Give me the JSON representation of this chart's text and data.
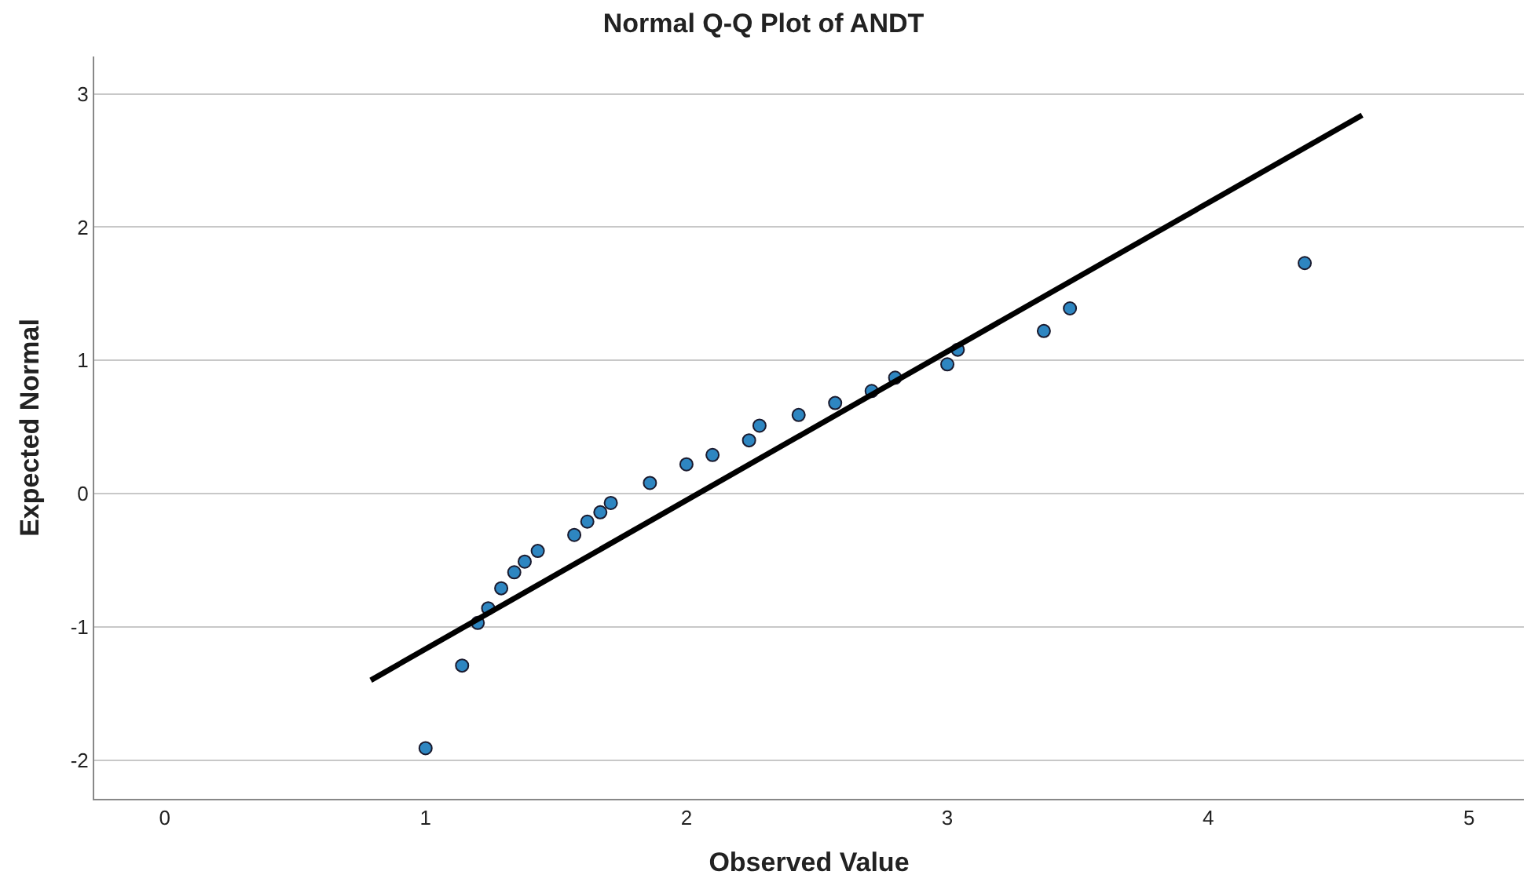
{
  "chart_data": {
    "type": "scatter",
    "title": "Normal Q-Q Plot of ANDT",
    "xlabel": "Observed Value",
    "ylabel": "Expected Normal",
    "xlim": [
      -0.27,
      5.21
    ],
    "ylim": [
      -2.29,
      3.28
    ],
    "xticks": [
      0,
      1,
      2,
      3,
      4,
      5
    ],
    "yticks": [
      -2,
      -1,
      0,
      1,
      2,
      3
    ],
    "grid": "y",
    "series": [
      {
        "marker": "circle",
        "color": "#2e86c1",
        "x": [
          1.0,
          1.14,
          1.2,
          1.24,
          1.29,
          1.34,
          1.38,
          1.43,
          1.57,
          1.62,
          1.67,
          1.71,
          1.86,
          2.0,
          2.1,
          2.24,
          2.28,
          2.43,
          2.57,
          2.71,
          2.8,
          3.0,
          3.04,
          3.37,
          3.47,
          4.37
        ],
        "values": [
          -1.91,
          -1.29,
          -0.97,
          -0.86,
          -0.71,
          -0.59,
          -0.51,
          -0.43,
          -0.31,
          -0.21,
          -0.14,
          -0.07,
          0.08,
          0.22,
          0.29,
          0.4,
          0.51,
          0.59,
          0.68,
          0.77,
          0.87,
          0.97,
          1.08,
          1.22,
          1.39,
          1.73
        ]
      },
      {
        "type": "line",
        "marker": "none",
        "color": "#000000",
        "x": [
          0.79,
          4.59
        ],
        "values": [
          -1.4,
          2.84
        ]
      }
    ]
  }
}
